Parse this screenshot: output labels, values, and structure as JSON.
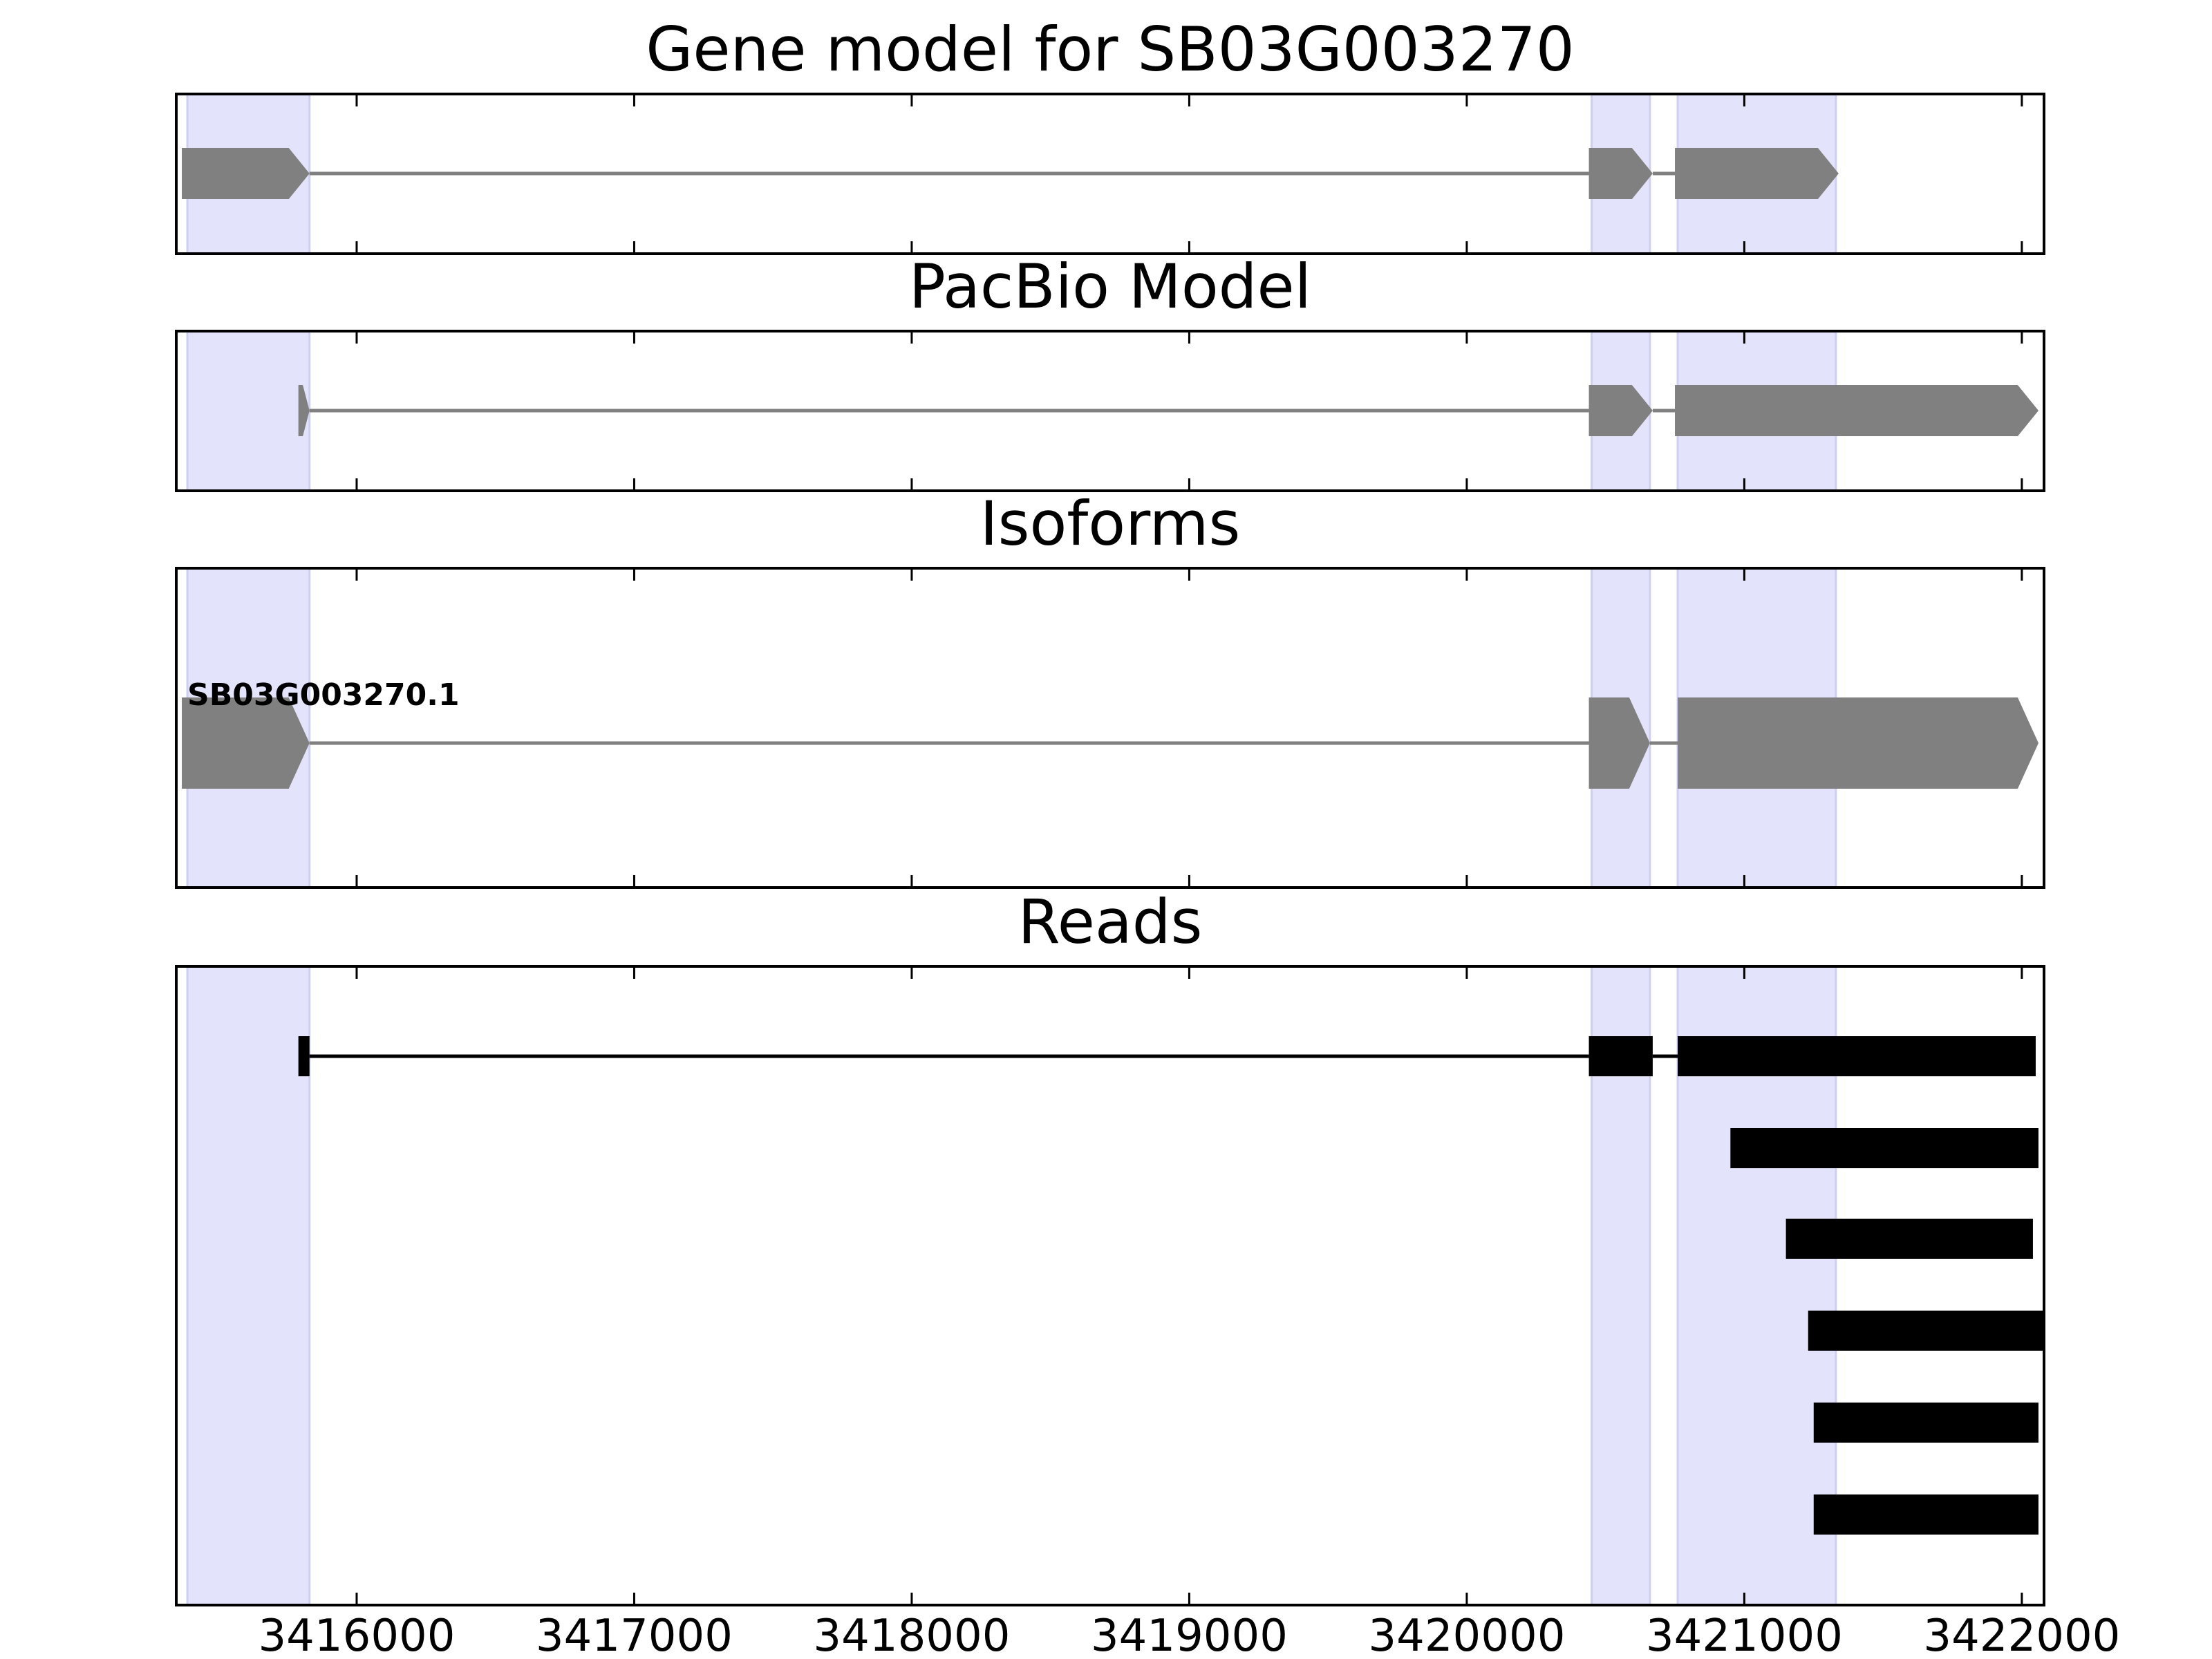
{
  "chart_data": {
    "type": "gene_structure",
    "xlim": [
      3415350,
      3422080
    ],
    "xticks": [
      3416000,
      3417000,
      3418000,
      3419000,
      3420000,
      3421000,
      3422000
    ],
    "xtick_labels": [
      "3416000",
      "3417000",
      "3418000",
      "3419000",
      "3420000",
      "3421000",
      "3422000"
    ],
    "highlight_regions": [
      [
        3415390,
        3415830
      ],
      [
        3420450,
        3420660
      ],
      [
        3420760,
        3421330
      ]
    ],
    "colors": {
      "highlight": "#e3e3fb",
      "gene_feature": "#808080",
      "read": "#000000",
      "frame": "#000000"
    },
    "panels": [
      {
        "key": "gene_model",
        "title": "Gene model for SB03G003270",
        "tracks": [
          {
            "label": "",
            "exons": [
              [
                3415370,
                3415830
              ],
              [
                3420440,
                3420670
              ],
              [
                3420750,
                3421340
              ]
            ]
          }
        ]
      },
      {
        "key": "pacbio_model",
        "title": "PacBio Model",
        "tracks": [
          {
            "label": "",
            "exons": [
              [
                3415790,
                3415830
              ],
              [
                3420440,
                3420670
              ],
              [
                3420750,
                3422060
              ]
            ]
          }
        ]
      },
      {
        "key": "isoforms",
        "title": "Isoforms",
        "tracks": [
          {
            "label": "SB03G003270.1",
            "exons": [
              [
                3415370,
                3415830
              ],
              [
                3420440,
                3420660
              ],
              [
                3420760,
                3422060
              ]
            ]
          }
        ]
      },
      {
        "key": "reads",
        "title": "Reads",
        "tracks": [
          {
            "exons": [
              [
                3415790,
                3415830
              ],
              [
                3420440,
                3420670
              ],
              [
                3420760,
                3422050
              ]
            ]
          },
          {
            "exons": [
              [
                3420950,
                3422060
              ]
            ]
          },
          {
            "exons": [
              [
                3421150,
                3422040
              ]
            ]
          },
          {
            "exons": [
              [
                3421230,
                3422080
              ]
            ]
          },
          {
            "exons": [
              [
                3421250,
                3422060
              ]
            ]
          },
          {
            "exons": [
              [
                3421250,
                3422060
              ]
            ]
          }
        ]
      }
    ]
  }
}
